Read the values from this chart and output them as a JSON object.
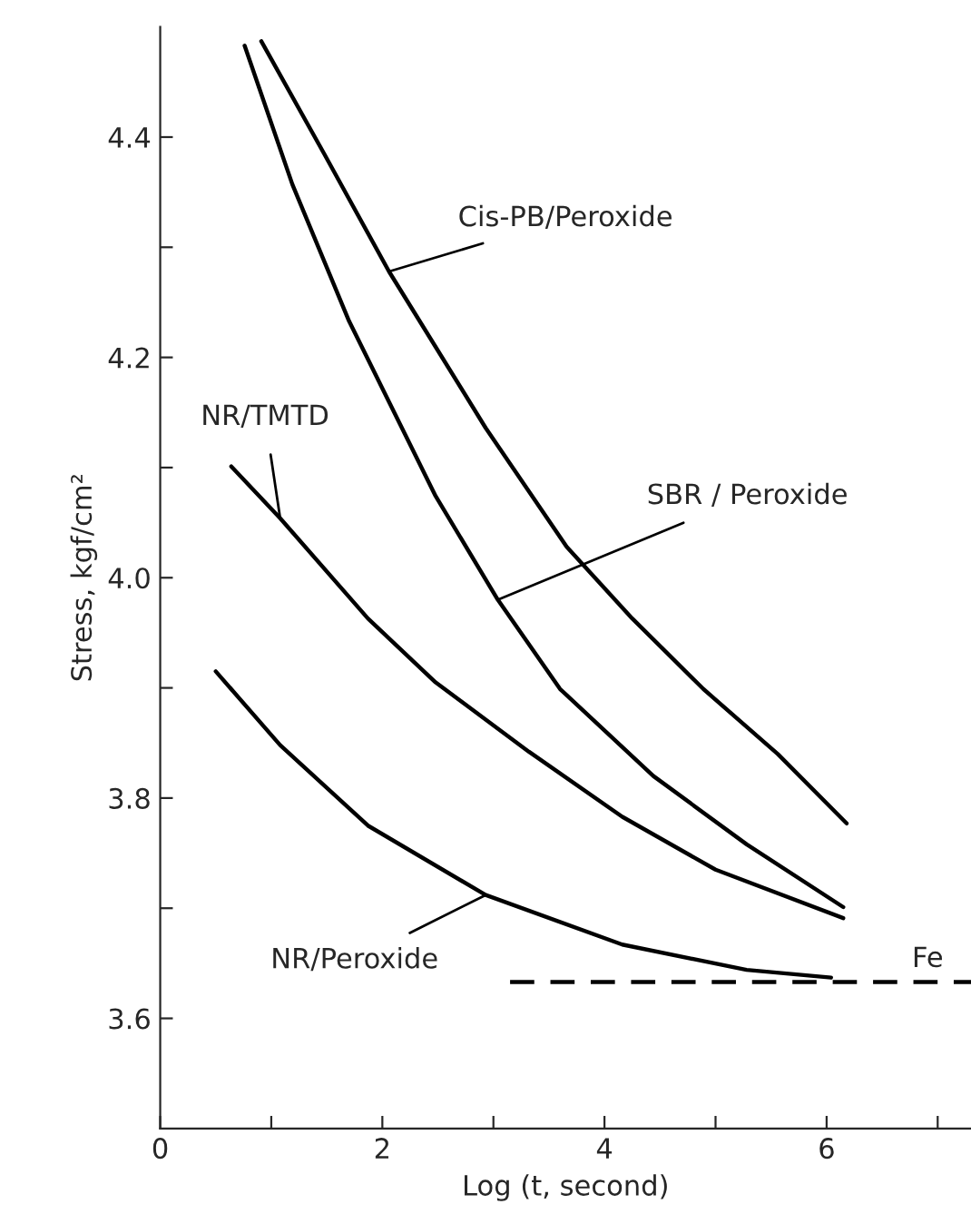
{
  "chart_data": {
    "type": "line",
    "xlabel": "Log (t, second)",
    "ylabel": "Stress, kgf/cm²",
    "xlim": [
      0,
      7.3
    ],
    "ylim": [
      3.5,
      4.5
    ],
    "xticks": [
      0,
      {
        "value": 1,
        "label": null
      },
      2,
      {
        "value": 3,
        "label": null
      },
      4,
      {
        "value": 5,
        "label": null
      },
      6,
      {
        "value": 7,
        "label": null
      }
    ],
    "yticks": [
      {
        "value": 3.6,
        "label": "3.6"
      },
      {
        "value": 3.7,
        "label": null
      },
      {
        "value": 3.8,
        "label": "3.8"
      },
      {
        "value": 3.9,
        "label": null
      },
      {
        "value": 4.0,
        "label": "4.0"
      },
      {
        "value": 4.1,
        "label": null
      },
      {
        "value": 4.2,
        "label": "4.2"
      },
      {
        "value": 4.3,
        "label": null
      },
      {
        "value": 4.4,
        "label": "4.4"
      }
    ],
    "grid": false,
    "legend": false,
    "marker": "none",
    "series": [
      {
        "color": "#000000",
        "line_style": "solid",
        "x": [
          0.91,
          1.47,
          2.06,
          2.93,
          3.66,
          4.25,
          4.89,
          5.56,
          6.18
        ],
        "values": [
          4.487,
          4.386,
          4.278,
          4.136,
          4.028,
          3.963,
          3.899,
          3.84,
          3.777
        ]
      },
      {
        "color": "#000000",
        "line_style": "solid",
        "x": [
          0.76,
          1.19,
          1.7,
          2.48,
          3.04,
          3.6,
          4.44,
          5.28,
          6.15
        ],
        "values": [
          4.483,
          4.357,
          4.233,
          4.074,
          3.98,
          3.899,
          3.82,
          3.758,
          3.701
        ]
      },
      {
        "color": "#000000",
        "line_style": "solid",
        "x": [
          0.64,
          1.08,
          1.87,
          2.48,
          3.32,
          4.16,
          5.0,
          6.15
        ],
        "values": [
          4.101,
          4.054,
          3.963,
          3.905,
          3.842,
          3.783,
          3.735,
          3.691
        ]
      },
      {
        "color": "#000000",
        "line_style": "solid",
        "x": [
          0.5,
          1.08,
          1.87,
          2.93,
          4.16,
          5.28,
          6.04
        ],
        "values": [
          3.915,
          3.848,
          3.775,
          3.712,
          3.667,
          3.644,
          3.637
        ]
      },
      {
        "color": "#000000",
        "line_style": "dashed",
        "x": [
          3.15,
          7.3
        ],
        "values": [
          3.633,
          3.633
        ]
      }
    ],
    "annotations": [
      {
        "text": "Cis-PB/Peroxide",
        "x": 2.06,
        "y": 4.278
      },
      {
        "text": "SBR / Peroxide",
        "x": 3.04,
        "y": 3.98
      },
      {
        "text": "NR/TMTD",
        "x": 1.08,
        "y": 4.054
      },
      {
        "text": "NR/Peroxide",
        "x": 2.93,
        "y": 3.712
      },
      {
        "text": "Fe",
        "x": 6.91,
        "y": 3.633
      }
    ]
  }
}
